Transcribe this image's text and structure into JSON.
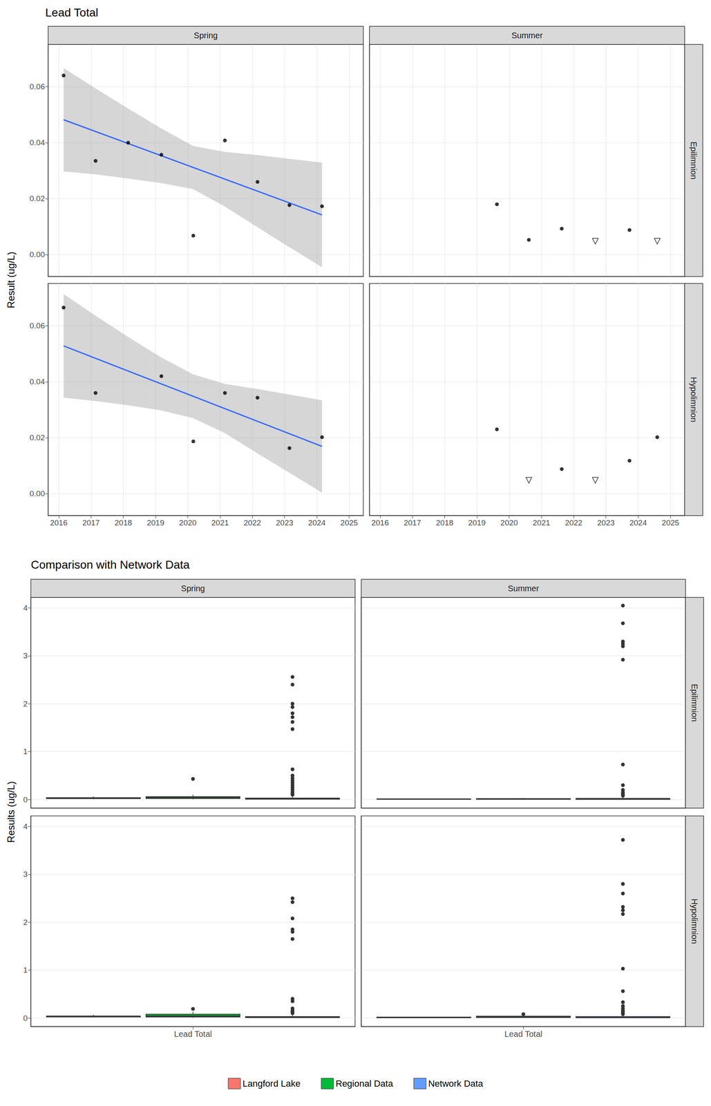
{
  "chart_data": [
    {
      "type": "scatter",
      "title": "Lead Total",
      "y_label": "Result (ug/L)",
      "columns": [
        "Spring",
        "Summer"
      ],
      "rows": [
        "Epilimnion",
        "Hypolimnion"
      ],
      "xlim": [
        2015.67,
        2025.44
      ],
      "xticks": [
        2016,
        2017,
        2018,
        2019,
        2020,
        2021,
        2022,
        2023,
        2024,
        2025
      ],
      "ylim": [
        -0.0078,
        0.0751
      ],
      "yticks": [
        {
          "value": 0,
          "label": "0.00"
        },
        {
          "value": 0.02,
          "label": "0.02"
        },
        {
          "value": 0.04,
          "label": "0.04"
        },
        {
          "value": 0.06,
          "label": "0.06"
        }
      ],
      "grid": true,
      "panels": [
        {
          "column": "Spring",
          "row": "Epilimnion",
          "series": [
            {
              "type": "band",
              "color": "#999999",
              "x": [
                2016.15,
                2017.15,
                2018.15,
                2019.16,
                2020.17,
                2021.16,
                2022.16,
                2023.16,
                2024.16
              ],
              "lower": [
                0.0297,
                0.0287,
                0.0272,
                0.0256,
                0.0234,
                0.0171,
                0.0098,
                0.0026,
                -0.0045
              ],
              "upper": [
                0.0667,
                0.0593,
                0.0522,
                0.0452,
                0.0388,
                0.0367,
                0.0356,
                0.0342,
                0.0329
              ]
            },
            {
              "type": "line",
              "color": "#3366FF",
              "x": [
                2016.15,
                2024.16
              ],
              "values": [
                0.0482,
                0.0142
              ]
            },
            {
              "type": "scatter",
              "marker": "circle",
              "color": "#000000",
              "x": [
                2016.15,
                2017.14,
                2018.15,
                2019.18,
                2020.17,
                2021.15,
                2022.16,
                2023.15,
                2024.16
              ],
              "values": [
                0.064,
                0.0335,
                0.04,
                0.0357,
                0.0068,
                0.0408,
                0.026,
                0.0177,
                0.0173
              ]
            }
          ]
        },
        {
          "column": "Summer",
          "row": "Epilimnion",
          "series": [
            {
              "type": "scatter",
              "marker": "circle",
              "color": "#000000",
              "x": [
                2019.62,
                2020.61,
                2021.63,
                2023.73
              ],
              "values": [
                0.018,
                0.0053,
                0.0093,
                0.0088
              ]
            },
            {
              "type": "scatter",
              "marker": "triangle_down_open",
              "color": "#000000",
              "x": [
                2022.67,
                2024.59
              ],
              "values": [
                0.0048,
                0.0048
              ]
            }
          ]
        },
        {
          "column": "Spring",
          "row": "Hypolimnion",
          "series": [
            {
              "type": "band",
              "color": "#999999",
              "x": [
                2016.15,
                2017.15,
                2018.15,
                2019.16,
                2020.17,
                2021.16,
                2022.16,
                2023.16,
                2024.16
              ],
              "lower": [
                0.0343,
                0.0331,
                0.0316,
                0.0298,
                0.027,
                0.0216,
                0.0144,
                0.0074,
                0.0004
              ],
              "upper": [
                0.0713,
                0.0635,
                0.056,
                0.0488,
                0.0426,
                0.0392,
                0.0374,
                0.0354,
                0.0334
              ]
            },
            {
              "type": "line",
              "color": "#3366FF",
              "x": [
                2016.15,
                2024.16
              ],
              "values": [
                0.0528,
                0.0169
              ]
            },
            {
              "type": "scatter",
              "marker": "circle",
              "color": "#000000",
              "x": [
                2016.15,
                2017.14,
                2019.18,
                2020.17,
                2021.15,
                2022.16,
                2023.15,
                2024.16
              ],
              "values": [
                0.0665,
                0.036,
                0.042,
                0.0187,
                0.036,
                0.0343,
                0.0163,
                0.0202
              ]
            }
          ]
        },
        {
          "column": "Summer",
          "row": "Hypolimnion",
          "series": [
            {
              "type": "scatter",
              "marker": "circle",
              "color": "#000000",
              "x": [
                2019.62,
                2021.63,
                2023.73,
                2024.59
              ],
              "values": [
                0.023,
                0.0088,
                0.0118,
                0.0202
              ]
            },
            {
              "type": "scatter",
              "marker": "triangle_down_open",
              "color": "#000000",
              "x": [
                2020.61,
                2022.67
              ],
              "values": [
                0.0048,
                0.0048
              ]
            }
          ]
        }
      ]
    },
    {
      "type": "boxplot",
      "title": "Comparison with Network Data",
      "y_label": "Results (ug/L)",
      "columns": [
        "Spring",
        "Summer"
      ],
      "rows": [
        "Epilimnion",
        "Hypolimnion"
      ],
      "categories": [
        "Lead Total"
      ],
      "ylim": [
        -0.18,
        4.22
      ],
      "yticks": [
        0,
        1,
        2,
        3,
        4
      ],
      "grid": true,
      "legend": "bottom",
      "series": [
        {
          "name": "Langford Lake",
          "color": "#F8766D"
        },
        {
          "name": "Regional Data",
          "color": "#00BA38"
        },
        {
          "name": "Network Data",
          "color": "#619CFF"
        }
      ],
      "panels": [
        {
          "column": "Spring",
          "row": "Epilimnion",
          "boxes": [
            {
              "min": 0.007,
              "q1": 0.018,
              "median": 0.03,
              "q3": 0.04,
              "max": 0.064,
              "outliers": []
            },
            {
              "min": 0.005,
              "q1": 0.02,
              "median": 0.04,
              "q3": 0.06,
              "max": 0.1,
              "outliers": [
                0.43
              ]
            },
            {
              "min": 0,
              "q1": 0.005,
              "median": 0.015,
              "q3": 0.03,
              "max": 0.07,
              "outliers": [
                0.1,
                0.12,
                0.15,
                0.2,
                0.25,
                0.3,
                0.35,
                0.4,
                0.45,
                0.5,
                0.63,
                1.47,
                1.62,
                1.72,
                1.8,
                1.93,
                2.0,
                2.4,
                2.56
              ]
            }
          ]
        },
        {
          "column": "Summer",
          "row": "Epilimnion",
          "boxes": [
            {
              "min": 0.0048,
              "q1": 0.0053,
              "median": 0.009,
              "q3": 0.0093,
              "max": 0.018,
              "outliers": []
            },
            {
              "min": 0.002,
              "q1": 0.005,
              "median": 0.01,
              "q3": 0.02,
              "max": 0.03,
              "outliers": []
            },
            {
              "min": 0,
              "q1": 0.003,
              "median": 0.01,
              "q3": 0.025,
              "max": 0.05,
              "outliers": [
                0.08,
                0.1,
                0.12,
                0.15,
                0.2,
                0.3,
                0.73,
                2.92,
                3.2,
                3.25,
                3.3,
                3.68,
                4.05
              ]
            }
          ]
        },
        {
          "column": "Spring",
          "row": "Hypolimnion",
          "boxes": [
            {
              "min": 0.016,
              "q1": 0.02,
              "median": 0.035,
              "q3": 0.04,
              "max": 0.067,
              "outliers": []
            },
            {
              "min": 0.005,
              "q1": 0.02,
              "median": 0.04,
              "q3": 0.08,
              "max": 0.13,
              "outliers": [
                0.19
              ]
            },
            {
              "min": 0,
              "q1": 0.006,
              "median": 0.016,
              "q3": 0.03,
              "max": 0.07,
              "outliers": [
                0.1,
                0.13,
                0.16,
                0.2,
                0.35,
                0.4,
                1.65,
                1.8,
                1.85,
                2.08,
                2.42,
                2.5
              ]
            }
          ]
        },
        {
          "column": "Summer",
          "row": "Hypolimnion",
          "boxes": [
            {
              "min": 0.0048,
              "q1": 0.0048,
              "median": 0.0103,
              "q3": 0.02,
              "max": 0.023,
              "outliers": []
            },
            {
              "min": 0.005,
              "q1": 0.01,
              "median": 0.02,
              "q3": 0.04,
              "max": 0.07,
              "outliers": [
                0.08
              ]
            },
            {
              "min": 0,
              "q1": 0.004,
              "median": 0.012,
              "q3": 0.03,
              "max": 0.06,
              "outliers": [
                0.08,
                0.1,
                0.13,
                0.16,
                0.2,
                0.25,
                0.33,
                0.56,
                1.03,
                2.17,
                2.25,
                2.32,
                2.6,
                2.8,
                3.72
              ]
            }
          ]
        }
      ]
    }
  ]
}
